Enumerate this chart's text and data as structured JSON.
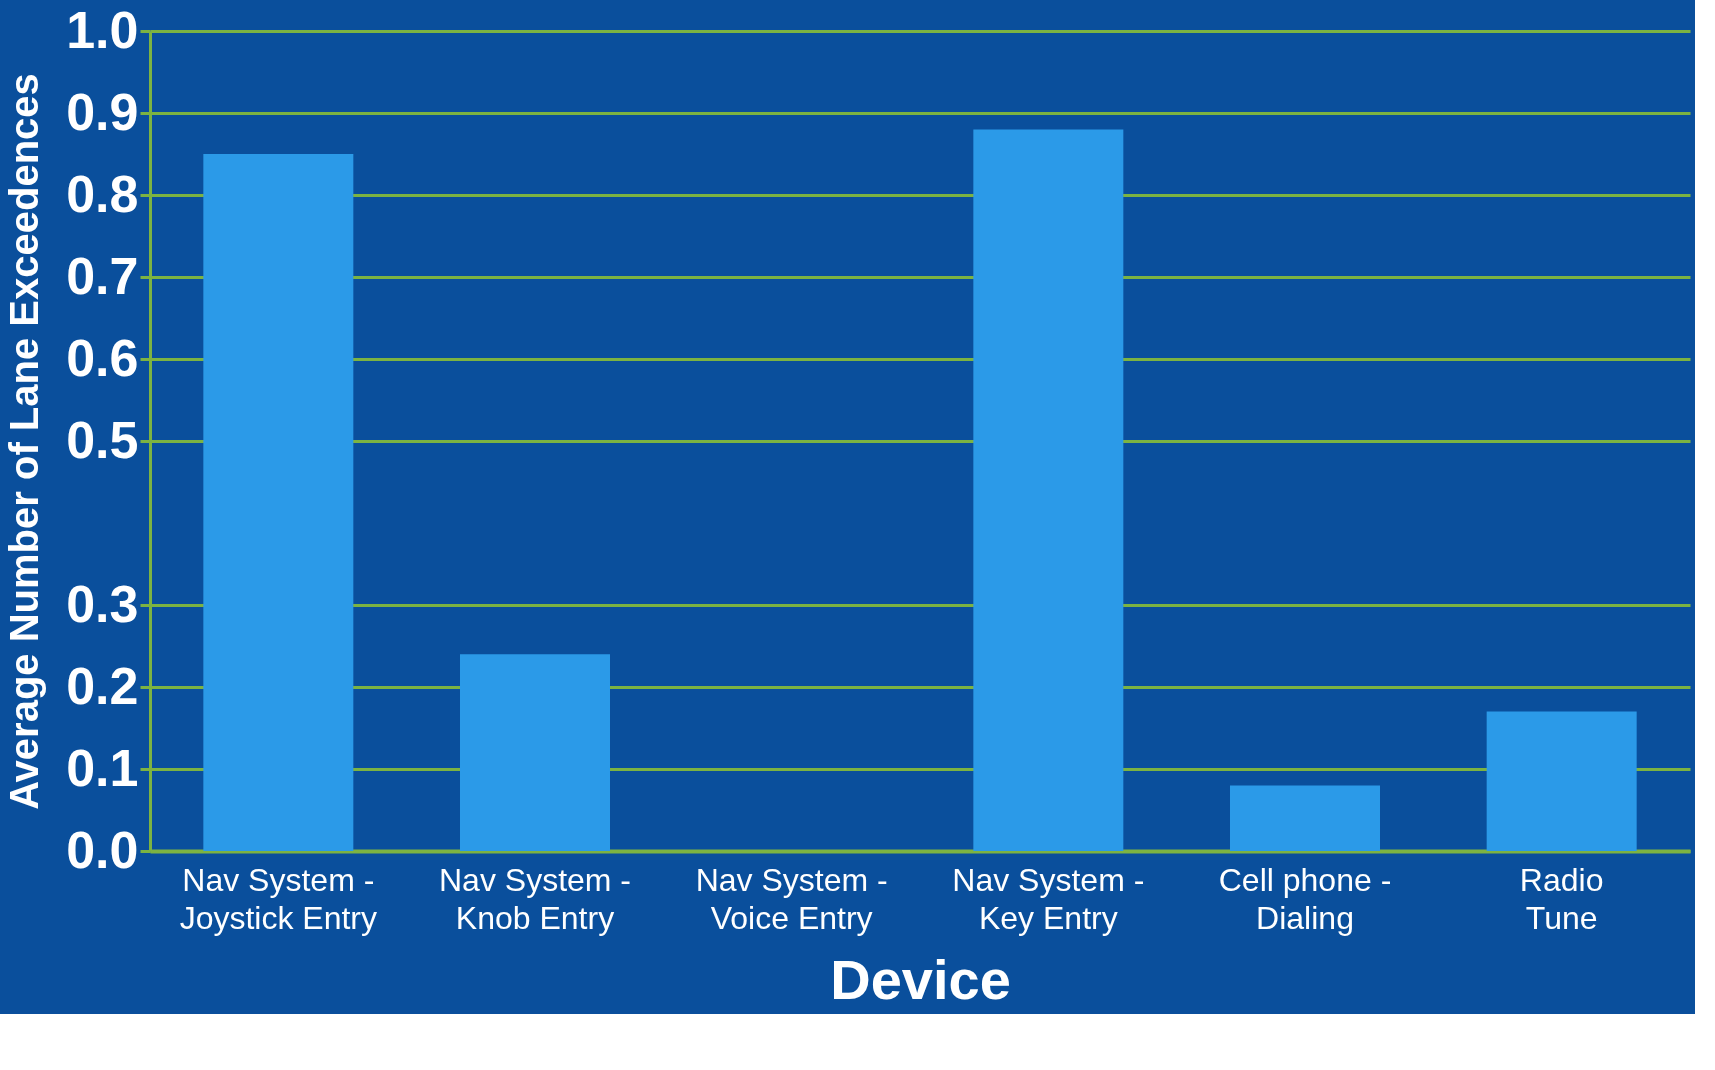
{
  "chart_data": {
    "type": "bar",
    "xlabel": "Device",
    "ylabel": "Average Number of Lane Exceedences",
    "categories": [
      "Nav System - Joystick Entry",
      "Nav System - Knob Entry",
      "Nav System - Voice Entry",
      "Nav System - Key Entry",
      "Cell phone - Dialing",
      "Radio Tune"
    ],
    "values": [
      0.85,
      0.24,
      0,
      0.88,
      0.08,
      0.17
    ],
    "color": "#2b9ae8",
    "ylim": [
      0,
      1.0
    ],
    "yticks": [
      {
        "value": 0,
        "label": "0.0"
      },
      {
        "value": 0.1,
        "label": "0.1"
      },
      {
        "value": 0.2,
        "label": "0.2"
      },
      {
        "value": 0.3,
        "label": "0.3"
      },
      {
        "value": 0.5,
        "label": "0.5"
      },
      {
        "value": 0.6,
        "label": "0.6"
      },
      {
        "value": 0.7,
        "label": "0.7"
      },
      {
        "value": 0.8,
        "label": "0.8"
      },
      {
        "value": 0.9,
        "label": "0.9"
      },
      {
        "value": 1.0,
        "label": "1.0"
      }
    ],
    "grid": "y"
  }
}
